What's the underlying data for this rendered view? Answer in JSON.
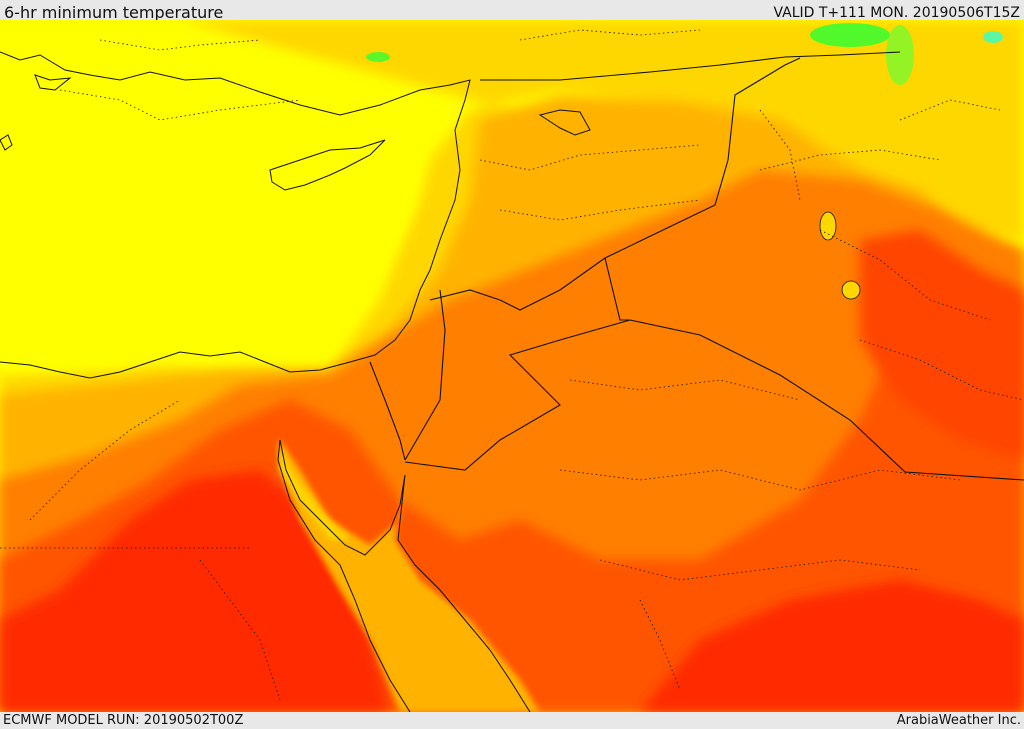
{
  "header": {
    "title": "6-hr minimum temperature",
    "valid": "VALID T+111 MON. 20190506T15Z"
  },
  "footer": {
    "model_run": "ECMWF MODEL RUN: 20190502T00Z",
    "credit": "ArabiaWeather Inc."
  },
  "colors": {
    "yellow": "#ffff00",
    "gold": "#ffd700",
    "amber": "#ffb300",
    "orange": "#ff7f00",
    "red_orange": "#ff5500",
    "red": "#ff2a00",
    "green": "#33ff33",
    "boundary": "#111111"
  }
}
